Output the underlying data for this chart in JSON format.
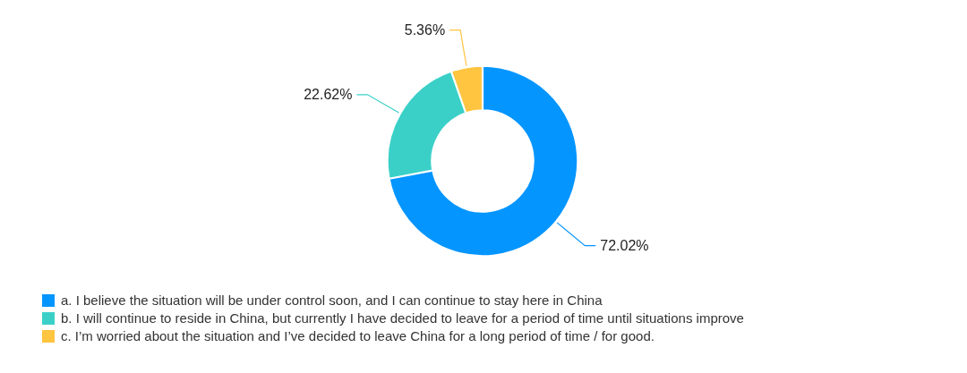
{
  "chart_data": {
    "type": "donut",
    "categories": [
      "a. I believe the situation will be under control soon, and I can continue to stay here in China",
      "b. I will continue to reside in China, but currently I have decided to leave for a period of time until situations improve",
      "c. I’m worried about the situation and I’ve decided to leave China for a long period of time / for good."
    ],
    "values": [
      72.02,
      22.62,
      5.36
    ],
    "colors": [
      "#0595ff",
      "#3ad0c8",
      "#ffc440"
    ],
    "data_labels": true,
    "value_labels": [
      "72.02%",
      "22.62%",
      "5.36%"
    ],
    "legend": "bottom left"
  }
}
